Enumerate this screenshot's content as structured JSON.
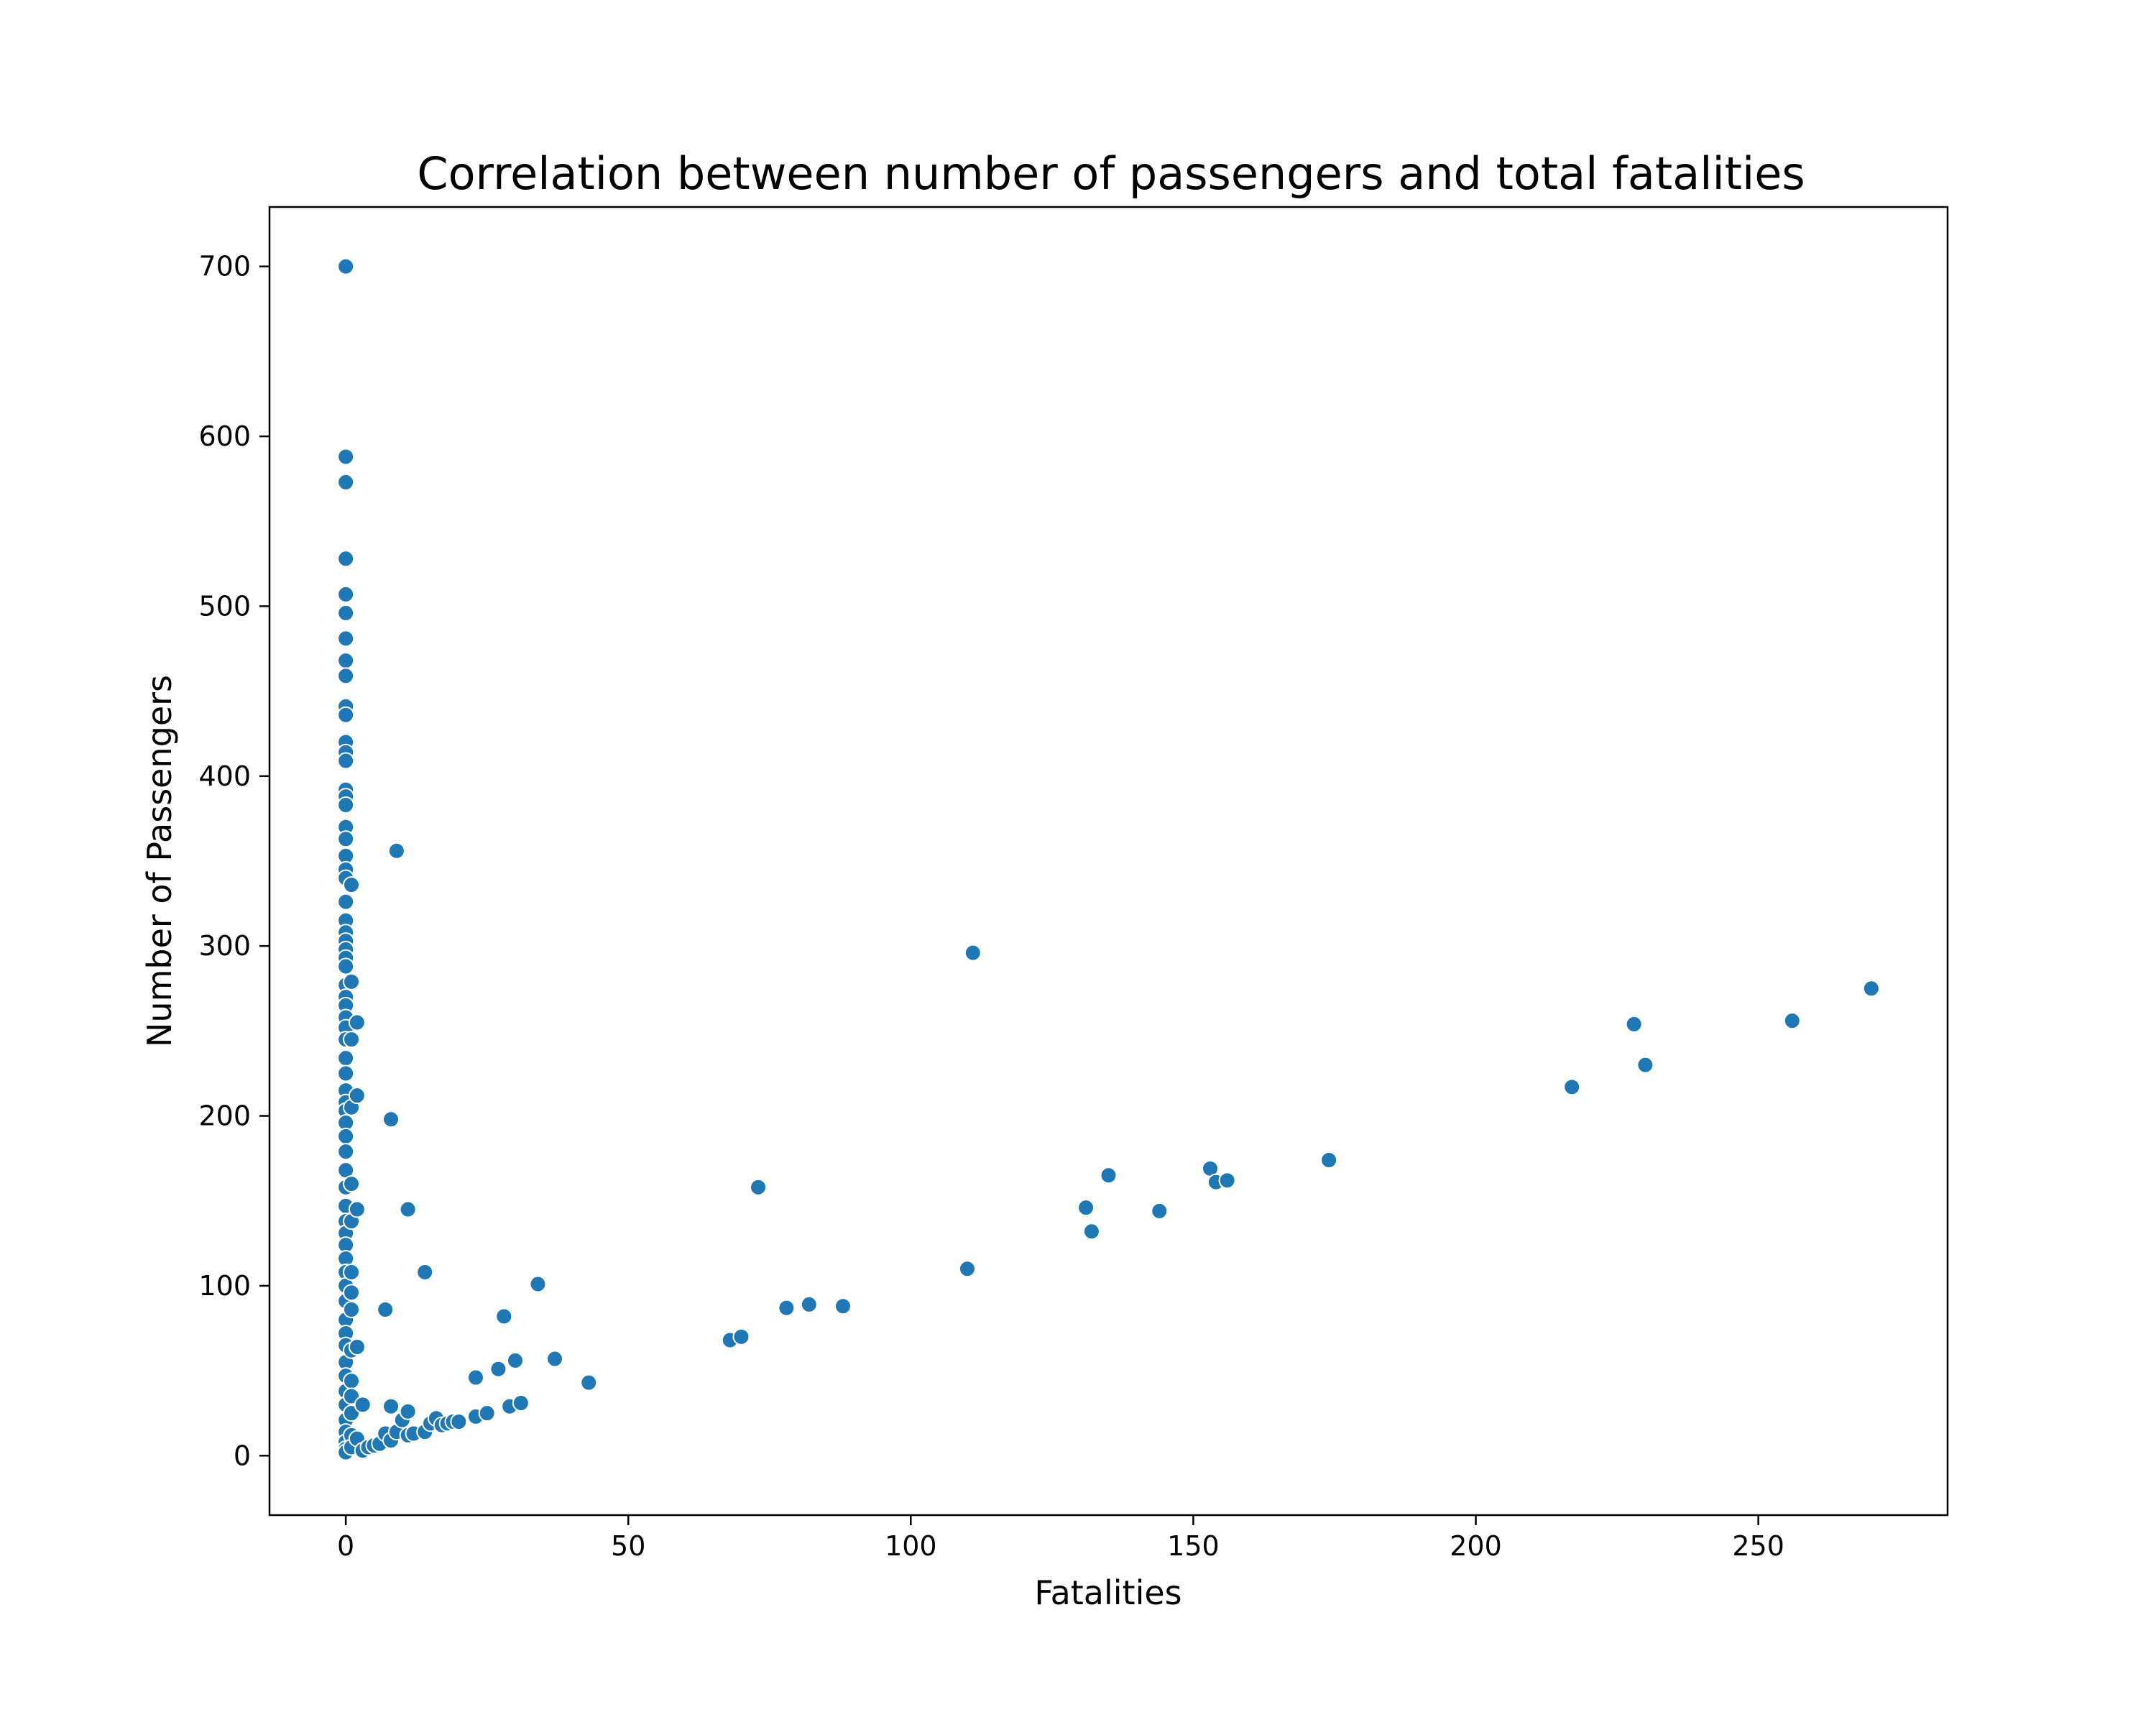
{
  "chart_data": {
    "type": "scatter",
    "title": "Correlation between number of passengers and total fatalities",
    "xlabel": "Fatalities",
    "ylabel": "Number of Passengers",
    "xlim": [
      -13.5,
      283.5
    ],
    "ylim": [
      -35,
      735
    ],
    "xticks": [
      0,
      50,
      100,
      150,
      200,
      250
    ],
    "yticks": [
      0,
      100,
      200,
      300,
      400,
      500,
      600,
      700
    ],
    "grid": false,
    "legend": "none",
    "marker_color": "#1f77b4",
    "marker_edge_color": "#ffffff",
    "points": [
      [
        0,
        700
      ],
      [
        0,
        588
      ],
      [
        0,
        573
      ],
      [
        0,
        528
      ],
      [
        0,
        507
      ],
      [
        0,
        496
      ],
      [
        0,
        481
      ],
      [
        0,
        468
      ],
      [
        0,
        459
      ],
      [
        0,
        441
      ],
      [
        0,
        436
      ],
      [
        0,
        420
      ],
      [
        0,
        414
      ],
      [
        0,
        409
      ],
      [
        0,
        392
      ],
      [
        0,
        388
      ],
      [
        0,
        383
      ],
      [
        0,
        370
      ],
      [
        0,
        363
      ],
      [
        0,
        353
      ],
      [
        0,
        345
      ],
      [
        0,
        340
      ],
      [
        0,
        326
      ],
      [
        0,
        315
      ],
      [
        0,
        308
      ],
      [
        0,
        303
      ],
      [
        0,
        298
      ],
      [
        0,
        293
      ],
      [
        0,
        288
      ],
      [
        0,
        277
      ],
      [
        0,
        270
      ],
      [
        0,
        265
      ],
      [
        0,
        258
      ],
      [
        0,
        252
      ],
      [
        0,
        245
      ],
      [
        0,
        234
      ],
      [
        0,
        225
      ],
      [
        0,
        215
      ],
      [
        0,
        208
      ],
      [
        0,
        203
      ],
      [
        0,
        196
      ],
      [
        0,
        188
      ],
      [
        0,
        179
      ],
      [
        0,
        168
      ],
      [
        0,
        158
      ],
      [
        0,
        147
      ],
      [
        0,
        138
      ],
      [
        0,
        131
      ],
      [
        0,
        124
      ],
      [
        0,
        116
      ],
      [
        0,
        108
      ],
      [
        0,
        100
      ],
      [
        0,
        91
      ],
      [
        0,
        80
      ],
      [
        0,
        72
      ],
      [
        0,
        65
      ],
      [
        0,
        55
      ],
      [
        0,
        47
      ],
      [
        0,
        38
      ],
      [
        0,
        30
      ],
      [
        0,
        21
      ],
      [
        0,
        14
      ],
      [
        0,
        8
      ],
      [
        0,
        4
      ],
      [
        0,
        2
      ],
      [
        1,
        336
      ],
      [
        1,
        279
      ],
      [
        1,
        245
      ],
      [
        1,
        205
      ],
      [
        1,
        160
      ],
      [
        1,
        138
      ],
      [
        1,
        108
      ],
      [
        1,
        96
      ],
      [
        1,
        86
      ],
      [
        1,
        62
      ],
      [
        1,
        44
      ],
      [
        1,
        35
      ],
      [
        1,
        25
      ],
      [
        1,
        12
      ],
      [
        1,
        5
      ],
      [
        2,
        255
      ],
      [
        2,
        212
      ],
      [
        2,
        145
      ],
      [
        2,
        64
      ],
      [
        2,
        10
      ],
      [
        3,
        30
      ],
      [
        3,
        3
      ],
      [
        4,
        5
      ],
      [
        5,
        6
      ],
      [
        6,
        7
      ],
      [
        7,
        86
      ],
      [
        7,
        13
      ],
      [
        8,
        198
      ],
      [
        8,
        29
      ],
      [
        8,
        9
      ],
      [
        9,
        356
      ],
      [
        9,
        14
      ],
      [
        10,
        21
      ],
      [
        11,
        145
      ],
      [
        11,
        26
      ],
      [
        11,
        12
      ],
      [
        12,
        13
      ],
      [
        14,
        108
      ],
      [
        14,
        14
      ],
      [
        15,
        19
      ],
      [
        16,
        22
      ],
      [
        17,
        18
      ],
      [
        18,
        19
      ],
      [
        19,
        20
      ],
      [
        20,
        20
      ],
      [
        23,
        46
      ],
      [
        23,
        23
      ],
      [
        25,
        25
      ],
      [
        27,
        51
      ],
      [
        28,
        82
      ],
      [
        29,
        29
      ],
      [
        30,
        56
      ],
      [
        31,
        31
      ],
      [
        34,
        101
      ],
      [
        37,
        57
      ],
      [
        43,
        43
      ],
      [
        68,
        68
      ],
      [
        70,
        70
      ],
      [
        73,
        158
      ],
      [
        78,
        87
      ],
      [
        82,
        89
      ],
      [
        88,
        88
      ],
      [
        110,
        110
      ],
      [
        111,
        296
      ],
      [
        131,
        146
      ],
      [
        132,
        132
      ],
      [
        135,
        165
      ],
      [
        144,
        144
      ],
      [
        153,
        169
      ],
      [
        154,
        161
      ],
      [
        156,
        162
      ],
      [
        174,
        174
      ],
      [
        217,
        217
      ],
      [
        228,
        254
      ],
      [
        230,
        230
      ],
      [
        256,
        256
      ],
      [
        270,
        275
      ]
    ]
  }
}
